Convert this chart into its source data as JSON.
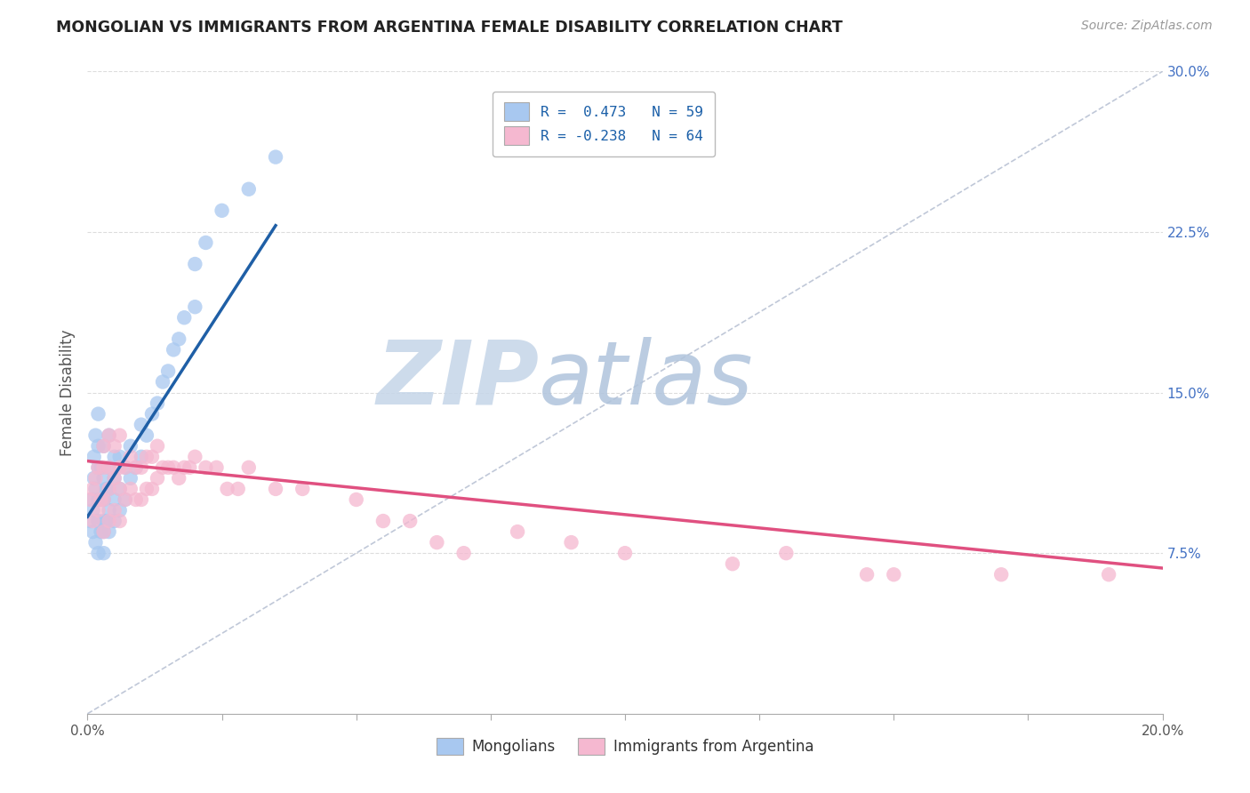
{
  "title": "MONGOLIAN VS IMMIGRANTS FROM ARGENTINA FEMALE DISABILITY CORRELATION CHART",
  "source": "Source: ZipAtlas.com",
  "ylabel": "Female Disability",
  "right_yticks": [
    0.0,
    0.075,
    0.15,
    0.225,
    0.3
  ],
  "right_yticklabels": [
    "",
    "7.5%",
    "15.0%",
    "22.5%",
    "30.0%"
  ],
  "legend_blue_r": "R =  0.473",
  "legend_blue_n": "N = 59",
  "legend_pink_r": "R = -0.238",
  "legend_pink_n": "N = 64",
  "legend_label1": "Mongolians",
  "legend_label2": "Immigrants from Argentina",
  "blue_color": "#a8c8f0",
  "pink_color": "#f5b8d0",
  "blue_line_color": "#1f5fa6",
  "pink_line_color": "#e05080",
  "dashed_line_color": "#c0c8d8",
  "watermark_zip_color": "#c8d8ec",
  "watermark_atlas_color": "#c8d8ec",
  "xmin": 0.0,
  "xmax": 0.2,
  "ymin": 0.0,
  "ymax": 0.3,
  "blue_scatter_x": [
    0.0005,
    0.0008,
    0.001,
    0.001,
    0.0012,
    0.0012,
    0.0015,
    0.0015,
    0.0015,
    0.002,
    0.002,
    0.002,
    0.002,
    0.002,
    0.002,
    0.0025,
    0.0025,
    0.0025,
    0.003,
    0.003,
    0.003,
    0.003,
    0.003,
    0.003,
    0.0035,
    0.0035,
    0.004,
    0.004,
    0.004,
    0.004,
    0.004,
    0.005,
    0.005,
    0.005,
    0.005,
    0.006,
    0.006,
    0.006,
    0.007,
    0.007,
    0.008,
    0.008,
    0.009,
    0.01,
    0.01,
    0.011,
    0.012,
    0.013,
    0.014,
    0.015,
    0.016,
    0.017,
    0.018,
    0.02,
    0.02,
    0.022,
    0.025,
    0.03,
    0.035
  ],
  "blue_scatter_y": [
    0.09,
    0.1,
    0.085,
    0.095,
    0.11,
    0.12,
    0.08,
    0.105,
    0.13,
    0.075,
    0.09,
    0.1,
    0.115,
    0.125,
    0.14,
    0.085,
    0.1,
    0.115,
    0.075,
    0.085,
    0.09,
    0.1,
    0.11,
    0.125,
    0.09,
    0.105,
    0.085,
    0.095,
    0.105,
    0.115,
    0.13,
    0.09,
    0.1,
    0.11,
    0.12,
    0.095,
    0.105,
    0.12,
    0.1,
    0.115,
    0.11,
    0.125,
    0.115,
    0.12,
    0.135,
    0.13,
    0.14,
    0.145,
    0.155,
    0.16,
    0.17,
    0.175,
    0.185,
    0.19,
    0.21,
    0.22,
    0.235,
    0.245,
    0.26
  ],
  "pink_scatter_x": [
    0.0005,
    0.001,
    0.001,
    0.0015,
    0.002,
    0.002,
    0.0025,
    0.003,
    0.003,
    0.003,
    0.003,
    0.004,
    0.004,
    0.004,
    0.004,
    0.005,
    0.005,
    0.005,
    0.006,
    0.006,
    0.006,
    0.006,
    0.007,
    0.007,
    0.008,
    0.008,
    0.009,
    0.009,
    0.01,
    0.01,
    0.011,
    0.011,
    0.012,
    0.012,
    0.013,
    0.013,
    0.014,
    0.015,
    0.016,
    0.017,
    0.018,
    0.019,
    0.02,
    0.022,
    0.024,
    0.026,
    0.028,
    0.03,
    0.035,
    0.04,
    0.05,
    0.055,
    0.06,
    0.065,
    0.07,
    0.08,
    0.09,
    0.1,
    0.12,
    0.13,
    0.145,
    0.15,
    0.17,
    0.19
  ],
  "pink_scatter_y": [
    0.1,
    0.09,
    0.105,
    0.11,
    0.095,
    0.115,
    0.1,
    0.085,
    0.1,
    0.115,
    0.125,
    0.09,
    0.105,
    0.115,
    0.13,
    0.095,
    0.11,
    0.125,
    0.09,
    0.105,
    0.115,
    0.13,
    0.1,
    0.115,
    0.105,
    0.12,
    0.1,
    0.115,
    0.1,
    0.115,
    0.105,
    0.12,
    0.105,
    0.12,
    0.11,
    0.125,
    0.115,
    0.115,
    0.115,
    0.11,
    0.115,
    0.115,
    0.12,
    0.115,
    0.115,
    0.105,
    0.105,
    0.115,
    0.105,
    0.105,
    0.1,
    0.09,
    0.09,
    0.08,
    0.075,
    0.085,
    0.08,
    0.075,
    0.07,
    0.075,
    0.065,
    0.065,
    0.065,
    0.065
  ],
  "blue_trend_x0": 0.0,
  "blue_trend_x1": 0.035,
  "blue_trend_y0": 0.092,
  "blue_trend_y1": 0.228,
  "pink_trend_x0": 0.0,
  "pink_trend_x1": 0.2,
  "pink_trend_y0": 0.118,
  "pink_trend_y1": 0.068,
  "figsize": [
    14.06,
    8.92
  ],
  "dpi": 100
}
